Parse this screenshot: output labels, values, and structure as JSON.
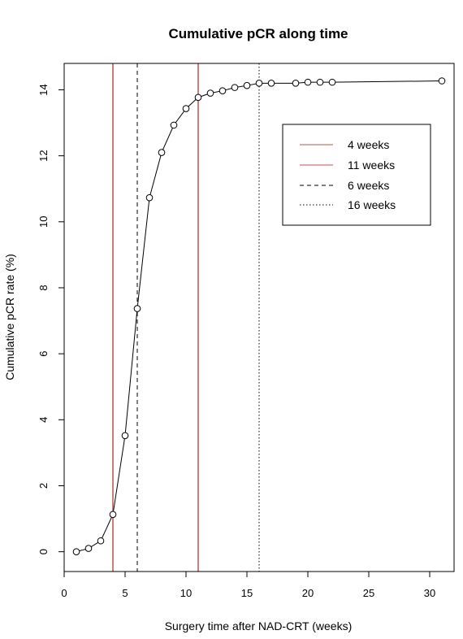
{
  "chart_data": {
    "type": "line",
    "title": "Cumulative pCR along time",
    "xlabel": "Surgery time after NAD-CRT (weeks)",
    "ylabel": "Cumulative pCR rate (%)",
    "xlim": [
      0,
      32
    ],
    "ylim": [
      -0.6,
      14.8
    ],
    "x_ticks": [
      0,
      5,
      10,
      15,
      20,
      25,
      30
    ],
    "y_ticks": [
      0,
      2,
      4,
      6,
      8,
      10,
      12,
      14
    ],
    "grid": false,
    "legend_position": "top-right",
    "series": [
      {
        "x": [
          1,
          2,
          3,
          4,
          5,
          6,
          7,
          8,
          9,
          10,
          11,
          12,
          13,
          14,
          15,
          16,
          17,
          19,
          20,
          21,
          22,
          31
        ],
        "y": [
          0.0,
          0.1,
          0.33,
          1.13,
          3.52,
          7.37,
          10.73,
          12.1,
          12.93,
          13.43,
          13.77,
          13.9,
          13.97,
          14.07,
          14.13,
          14.2,
          14.2,
          14.2,
          14.23,
          14.23,
          14.23,
          14.27
        ],
        "color": "#000000",
        "marker": "open-circle"
      }
    ],
    "vlines": [
      {
        "x": 4,
        "label": "4 weeks",
        "color": "#c0504d",
        "style": "solid"
      },
      {
        "x": 11,
        "label": "11 weeks",
        "color": "#c0504d",
        "style": "solid"
      },
      {
        "x": 6,
        "label": "6 weeks",
        "color": "#000000",
        "style": "dashed"
      },
      {
        "x": 16,
        "label": "16 weeks",
        "color": "#000000",
        "style": "dotted"
      }
    ]
  }
}
